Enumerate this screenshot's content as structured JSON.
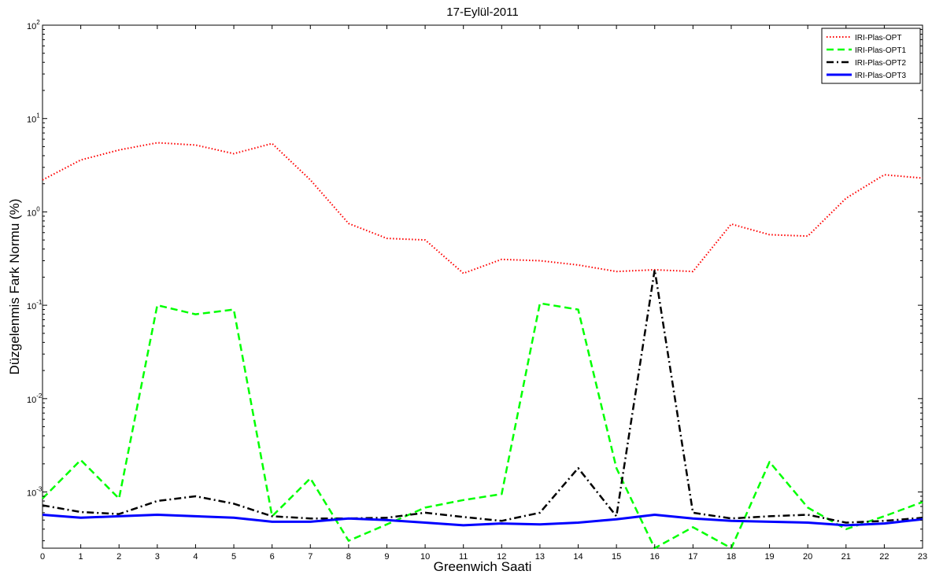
{
  "chart_data": {
    "type": "line",
    "title": "17-Eylül-2011",
    "xlabel": "Greenwich Saati",
    "ylabel": "Düzgelenmis Fark Normu (%)",
    "x": [
      0,
      1,
      2,
      3,
      4,
      5,
      6,
      7,
      8,
      9,
      10,
      11,
      12,
      13,
      14,
      15,
      16,
      17,
      18,
      19,
      20,
      21,
      22,
      23
    ],
    "xlim": [
      0,
      23
    ],
    "ylim": [
      0.00025,
      100
    ],
    "yscale": "log",
    "y_ticks": [
      {
        "base": "10",
        "exp": "-3",
        "value": 0.001
      },
      {
        "base": "10",
        "exp": "-2",
        "value": 0.01
      },
      {
        "base": "10",
        "exp": "-1",
        "value": 0.1
      },
      {
        "base": "10",
        "exp": "0",
        "value": 1
      },
      {
        "base": "10",
        "exp": "1",
        "value": 10
      },
      {
        "base": "10",
        "exp": "2",
        "value": 100
      }
    ],
    "grid": false,
    "legend": "top-right",
    "series": [
      {
        "name": "IRI-Plas-OPT",
        "color": "#ff0000",
        "style": "dotted",
        "values": [
          2.2,
          3.6,
          4.6,
          5.5,
          5.2,
          4.2,
          5.4,
          2.2,
          0.75,
          0.52,
          0.5,
          0.22,
          0.31,
          0.3,
          0.27,
          0.23,
          0.24,
          0.23,
          0.74,
          0.57,
          0.55,
          1.4,
          2.5,
          2.3
        ]
      },
      {
        "name": "IRI-Plas-OPT1",
        "color": "#00ff00",
        "style": "dashed",
        "values": [
          0.00085,
          0.0022,
          0.00085,
          0.1,
          0.08,
          0.09,
          0.00055,
          0.0014,
          0.0003,
          0.00045,
          0.00068,
          0.00082,
          0.00095,
          0.105,
          0.09,
          0.0018,
          0.00022,
          0.00042,
          0.00022,
          0.0021,
          0.00068,
          0.0004,
          0.00055,
          0.00078
        ]
      },
      {
        "name": "IRI-Plas-OPT2",
        "color": "#000000",
        "style": "dashdot",
        "values": [
          0.00072,
          0.00061,
          0.00058,
          0.0008,
          0.0009,
          0.00075,
          0.00055,
          0.00052,
          0.00052,
          0.00053,
          0.0006,
          0.00054,
          0.00049,
          0.0006,
          0.0018,
          0.00055,
          0.24,
          0.0006,
          0.00052,
          0.00055,
          0.00057,
          0.00047,
          0.00049,
          0.00053
        ]
      },
      {
        "name": "IRI-Plas-OPT3",
        "color": "#0000ff",
        "style": "solid",
        "values": [
          0.00057,
          0.00053,
          0.00055,
          0.00057,
          0.00055,
          0.00053,
          0.00048,
          0.00048,
          0.00052,
          0.0005,
          0.00047,
          0.00044,
          0.00046,
          0.00045,
          0.00047,
          0.00051,
          0.00057,
          0.00052,
          0.00049,
          0.00048,
          0.00047,
          0.00044,
          0.00046,
          0.00051
        ]
      }
    ]
  }
}
